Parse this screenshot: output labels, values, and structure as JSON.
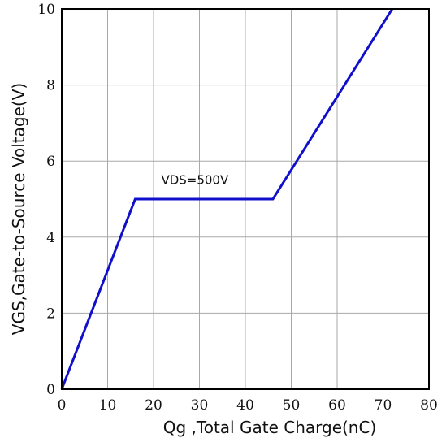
{
  "chart_data": {
    "type": "line",
    "xlabel": "Qg ,Total Gate Charge(nC)",
    "ylabel": "VGS,Gate-to-Source Voltage(V)",
    "xlim": [
      0,
      80
    ],
    "ylim": [
      0,
      10
    ],
    "x_ticks": [
      0,
      10,
      20,
      30,
      40,
      50,
      60,
      70,
      80
    ],
    "y_ticks": [
      0,
      2,
      4,
      6,
      8,
      10
    ],
    "grid": true,
    "legend": "none",
    "series": [
      {
        "color": "#1010cc",
        "points": [
          {
            "x": 0,
            "y": 0
          },
          {
            "x": 16,
            "y": 5
          },
          {
            "x": 46,
            "y": 5
          },
          {
            "x": 72,
            "y": 10
          }
        ]
      }
    ],
    "annotations": [
      {
        "text": "VDS=500V",
        "x": 29,
        "y": 5.4
      }
    ]
  }
}
